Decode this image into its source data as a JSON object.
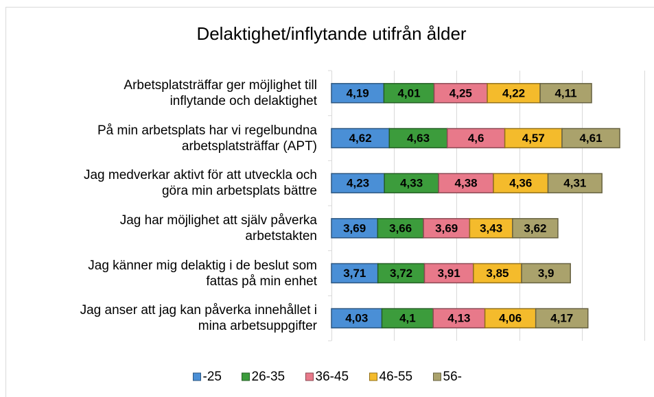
{
  "chart_data": {
    "type": "stacked-bar-horizontal",
    "title": "Delaktighet/inflytande utifrån ålder",
    "categories": [
      "Arbetsplatsträffar ger möjlighet till\ninflytande och delaktighet",
      "På min arbetsplats har vi regelbundna\narbetsplatsträffar (APT)",
      "Jag medverkar aktivt för att utveckla och\ngöra min arbetsplats bättre",
      "Jag har möjlighet att själv påverka\narbetstakten",
      "Jag känner mig delaktig i de beslut som\nfattas på min enhet",
      "Jag anser att jag kan påverka innehållet i\nmina arbetsuppgifter"
    ],
    "series": [
      {
        "name": "-25",
        "color": "#4a8fd6",
        "values": [
          4.19,
          4.62,
          4.23,
          3.69,
          3.71,
          4.03
        ],
        "value_labels": [
          "4,19",
          "4,62",
          "4,23",
          "3,69",
          "3,71",
          "4,03"
        ]
      },
      {
        "name": "26-35",
        "color": "#3c9c3c",
        "values": [
          4.01,
          4.63,
          4.33,
          3.66,
          3.72,
          4.1
        ],
        "value_labels": [
          "4,01",
          "4,63",
          "4,33",
          "3,66",
          "3,72",
          "4,1"
        ]
      },
      {
        "name": "36-45",
        "color": "#e8798a",
        "values": [
          4.25,
          4.6,
          4.38,
          3.69,
          3.91,
          4.13
        ],
        "value_labels": [
          "4,25",
          "4,6",
          "4,38",
          "3,69",
          "3,91",
          "4,13"
        ]
      },
      {
        "name": "46-55",
        "color": "#f4bb2c",
        "values": [
          4.22,
          4.57,
          4.36,
          3.43,
          3.85,
          4.06
        ],
        "value_labels": [
          "4,22",
          "4,57",
          "4,36",
          "3,43",
          "3,85",
          "4,06"
        ]
      },
      {
        "name": "56-",
        "color": "#aaa26c",
        "values": [
          4.11,
          4.61,
          4.31,
          3.62,
          3.9,
          4.17
        ],
        "value_labels": [
          "4,11",
          "4,61",
          "4,31",
          "3,62",
          "3,9",
          "4,17"
        ]
      }
    ],
    "xlim": [
      0,
      25
    ],
    "xticks": [
      0,
      5,
      10,
      15,
      20,
      25
    ],
    "grid": true,
    "legend": "bottom"
  }
}
